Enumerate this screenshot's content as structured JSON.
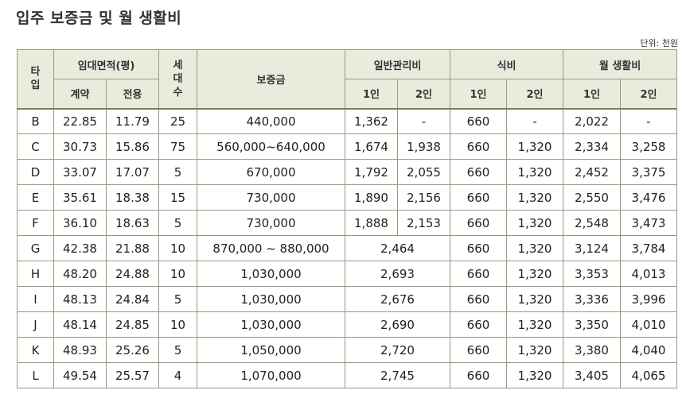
{
  "title": "입주 보증금 및 월 생활비",
  "unit_note": "단위: 천원",
  "headers": {
    "type": "타입",
    "rental_area": "임대면적(평)",
    "contract": "계약",
    "exclusive": "전용",
    "households": "세대수",
    "deposit": "보증금",
    "mgmt_fee": "일반관리비",
    "meal": "식비",
    "living": "월 생활비",
    "one": "1인",
    "two": "2인"
  },
  "rows": [
    {
      "type": "B",
      "contract": "22.85",
      "exclusive": "11.79",
      "households": "25",
      "deposit": "440,000",
      "mgmt1": "1,362",
      "mgmt2": "-",
      "meal1": "660",
      "meal2": "-",
      "live1": "2,022",
      "live2": "-"
    },
    {
      "type": "C",
      "contract": "30.73",
      "exclusive": "15.86",
      "households": "75",
      "deposit": "560,000~640,000",
      "mgmt1": "1,674",
      "mgmt2": "1,938",
      "meal1": "660",
      "meal2": "1,320",
      "live1": "2,334",
      "live2": "3,258"
    },
    {
      "type": "D",
      "contract": "33.07",
      "exclusive": "17.07",
      "households": "5",
      "deposit": "670,000",
      "mgmt1": "1,792",
      "mgmt2": "2,055",
      "meal1": "660",
      "meal2": "1,320",
      "live1": "2,452",
      "live2": "3,375"
    },
    {
      "type": "E",
      "contract": "35.61",
      "exclusive": "18.38",
      "households": "15",
      "deposit": "730,000",
      "mgmt1": "1,890",
      "mgmt2": "2,156",
      "meal1": "660",
      "meal2": "1,320",
      "live1": "2,550",
      "live2": "3,476"
    },
    {
      "type": "F",
      "contract": "36.10",
      "exclusive": "18.63",
      "households": "5",
      "deposit": "730,000",
      "mgmt1": "1,888",
      "mgmt2": "2,153",
      "meal1": "660",
      "meal2": "1,320",
      "live1": "2,548",
      "live2": "3,473"
    },
    {
      "type": "G",
      "contract": "42.38",
      "exclusive": "21.88",
      "households": "10",
      "deposit": "870,000 ~ 880,000",
      "mgmt": "2,464",
      "meal1": "660",
      "meal2": "1,320",
      "live1": "3,124",
      "live2": "3,784"
    },
    {
      "type": "H",
      "contract": "48.20",
      "exclusive": "24.88",
      "households": "10",
      "deposit": "1,030,000",
      "mgmt": "2,693",
      "meal1": "660",
      "meal2": "1,320",
      "live1": "3,353",
      "live2": "4,013"
    },
    {
      "type": "I",
      "contract": "48.13",
      "exclusive": "24.84",
      "households": "5",
      "deposit": "1,030,000",
      "mgmt": "2,676",
      "meal1": "660",
      "meal2": "1,320",
      "live1": "3,336",
      "live2": "3,996"
    },
    {
      "type": "J",
      "contract": "48.14",
      "exclusive": "24.85",
      "households": "10",
      "deposit": "1,030,000",
      "mgmt": "2,690",
      "meal1": "660",
      "meal2": "1,320",
      "live1": "3,350",
      "live2": "4,010"
    },
    {
      "type": "K",
      "contract": "48.93",
      "exclusive": "25.26",
      "households": "5",
      "deposit": "1,050,000",
      "mgmt": "2,720",
      "meal1": "660",
      "meal2": "1,320",
      "live1": "3,380",
      "live2": "4,040"
    },
    {
      "type": "L",
      "contract": "49.54",
      "exclusive": "25.57",
      "households": "4",
      "deposit": "1,070,000",
      "mgmt": "2,745",
      "meal1": "660",
      "meal2": "1,320",
      "live1": "3,405",
      "live2": "4,065"
    }
  ]
}
